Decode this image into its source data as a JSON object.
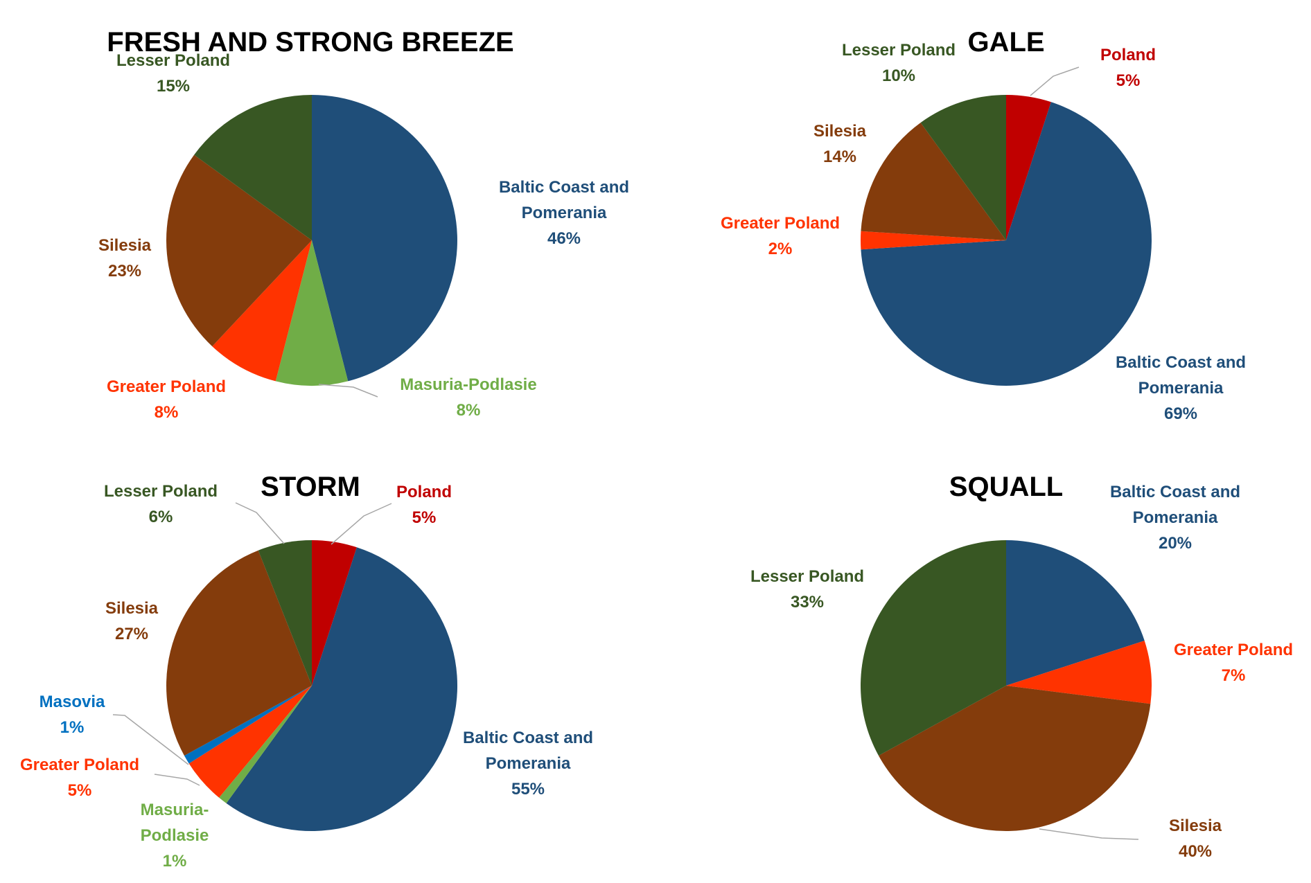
{
  "colors": {
    "baltic": "#1f4e79",
    "masuria": "#70ad47",
    "greater": "#ff3300",
    "silesia": "#843c0c",
    "lesser": "#385723",
    "poland": "#c00000",
    "masovia": "#0070c0"
  },
  "chart_data": [
    {
      "type": "pie",
      "title": "FRESH AND STRONG BREEZE",
      "slices": [
        {
          "lines": [
            "Baltic Coast and",
            "Pomerania"
          ],
          "pct": "46%",
          "value": 46,
          "color": "#1f4e79"
        },
        {
          "lines": [
            "Masuria-Podlasie"
          ],
          "pct": "8%",
          "value": 8,
          "color": "#70ad47"
        },
        {
          "lines": [
            "Greater Poland"
          ],
          "pct": "8%",
          "value": 8,
          "color": "#ff3300"
        },
        {
          "lines": [
            "Silesia"
          ],
          "pct": "23%",
          "value": 23,
          "color": "#843c0c"
        },
        {
          "lines": [
            "Lesser Poland"
          ],
          "pct": "15%",
          "value": 15,
          "color": "#385723"
        }
      ]
    },
    {
      "type": "pie",
      "title": "GALE",
      "slices": [
        {
          "lines": [
            "Poland"
          ],
          "pct": "5%",
          "value": 5,
          "color": "#c00000"
        },
        {
          "lines": [
            "Baltic Coast and",
            "Pomerania"
          ],
          "pct": "69%",
          "value": 69,
          "color": "#1f4e79"
        },
        {
          "lines": [
            "Greater Poland"
          ],
          "pct": "2%",
          "value": 2,
          "color": "#ff3300"
        },
        {
          "lines": [
            "Silesia"
          ],
          "pct": "14%",
          "value": 14,
          "color": "#843c0c"
        },
        {
          "lines": [
            "Lesser Poland"
          ],
          "pct": "10%",
          "value": 10,
          "color": "#385723"
        }
      ]
    },
    {
      "type": "pie",
      "title": "STORM",
      "slices": [
        {
          "lines": [
            "Poland"
          ],
          "pct": "5%",
          "value": 5,
          "color": "#c00000"
        },
        {
          "lines": [
            "Baltic Coast and",
            "Pomerania"
          ],
          "pct": "55%",
          "value": 55,
          "color": "#1f4e79"
        },
        {
          "lines": [
            "Masuria-",
            "Podlasie"
          ],
          "pct": "1%",
          "value": 1,
          "color": "#70ad47"
        },
        {
          "lines": [
            "Greater Poland"
          ],
          "pct": "5%",
          "value": 5,
          "color": "#ff3300"
        },
        {
          "lines": [
            "Masovia"
          ],
          "pct": "1%",
          "value": 1,
          "color": "#0070c0"
        },
        {
          "lines": [
            "Silesia"
          ],
          "pct": "27%",
          "value": 27,
          "color": "#843c0c"
        },
        {
          "lines": [
            "Lesser Poland"
          ],
          "pct": "6%",
          "value": 6,
          "color": "#385723"
        }
      ]
    },
    {
      "type": "pie",
      "title": "SQUALL",
      "slices": [
        {
          "lines": [
            "Baltic Coast and",
            "Pomerania"
          ],
          "pct": "20%",
          "value": 20,
          "color": "#1f4e79"
        },
        {
          "lines": [
            "Greater Poland"
          ],
          "pct": "7%",
          "value": 7,
          "color": "#ff3300"
        },
        {
          "lines": [
            "Silesia"
          ],
          "pct": "40%",
          "value": 40,
          "color": "#843c0c"
        },
        {
          "lines": [
            "Lesser Poland"
          ],
          "pct": "33%",
          "value": 33,
          "color": "#385723"
        }
      ]
    }
  ]
}
